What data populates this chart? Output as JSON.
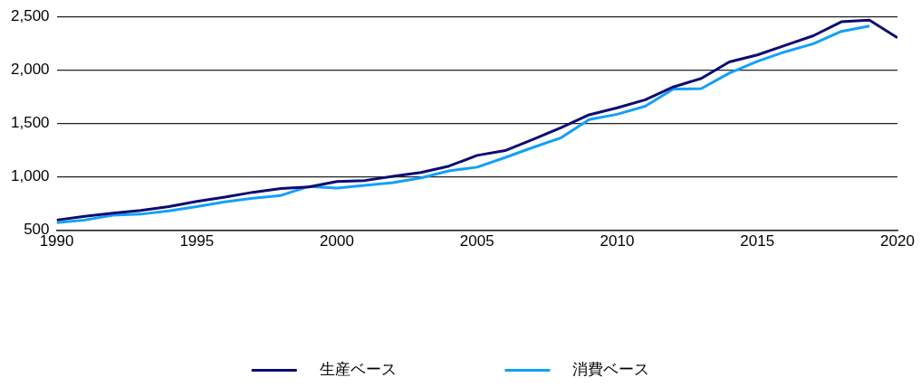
{
  "chart_data": {
    "type": "line",
    "x": [
      1990,
      1991,
      1992,
      1993,
      1994,
      1995,
      1996,
      1997,
      1998,
      1999,
      2000,
      2001,
      2002,
      2003,
      2004,
      2005,
      2006,
      2007,
      2008,
      2009,
      2010,
      2011,
      2012,
      2013,
      2014,
      2015,
      2016,
      2017,
      2018,
      2019,
      2020
    ],
    "series": [
      {
        "name": "生産ベース",
        "color": "#0c0c72",
        "values": [
          595,
          630,
          660,
          685,
          720,
          770,
          810,
          855,
          890,
          905,
          955,
          965,
          1005,
          1040,
          1100,
          1200,
          1245,
          1350,
          1460,
          1580,
          1645,
          1720,
          1840,
          1920,
          2075,
          2140,
          2230,
          2320,
          2450,
          2465,
          2300
        ]
      },
      {
        "name": "消費ベース",
        "color": "#12a0f8",
        "values": [
          570,
          595,
          640,
          650,
          680,
          720,
          765,
          800,
          825,
          910,
          895,
          920,
          945,
          990,
          1055,
          1090,
          1180,
          1275,
          1365,
          1535,
          1585,
          1660,
          1820,
          1825,
          1970,
          2080,
          2170,
          2245,
          2360,
          2410,
          null
        ]
      }
    ],
    "xlim": [
      1990,
      2020
    ],
    "xticks": [
      1990,
      1995,
      2000,
      2005,
      2010,
      2015,
      2020
    ],
    "ylim": [
      500,
      2500
    ],
    "yticks": [
      {
        "value": 500,
        "label": "500"
      },
      {
        "value": 1000,
        "label": "1,000"
      },
      {
        "value": 1500,
        "label": "1,500"
      },
      {
        "value": 2000,
        "label": "2,000"
      },
      {
        "value": 2500,
        "label": "2,500"
      }
    ],
    "grid": "y",
    "legend": "bottom",
    "marker": "none",
    "line_style": "solid"
  }
}
